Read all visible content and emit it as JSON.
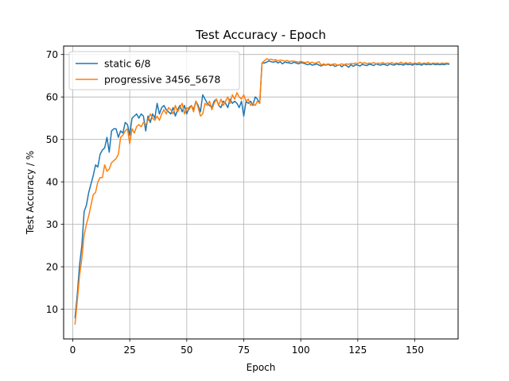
{
  "chart_data": {
    "type": "line",
    "title": "Test Accuracy - Epoch",
    "xlabel": "Epoch",
    "ylabel": "Test Accuracy / %",
    "xlim": [
      -4,
      169
    ],
    "ylim": [
      3,
      72
    ],
    "xticks": [
      0,
      25,
      50,
      75,
      100,
      125,
      150
    ],
    "yticks": [
      10,
      20,
      30,
      40,
      50,
      60,
      70
    ],
    "grid": true,
    "legend_position": "top-left",
    "series": [
      {
        "name": "static 6/8",
        "color": "#1f77b4",
        "points": [
          [
            1,
            8
          ],
          [
            2,
            13.5
          ],
          [
            3,
            20.5
          ],
          [
            4,
            25
          ],
          [
            5,
            33
          ],
          [
            6,
            34.5
          ],
          [
            7,
            37.5
          ],
          [
            8,
            39.5
          ],
          [
            9,
            41.5
          ],
          [
            10,
            44
          ],
          [
            11,
            43.5
          ],
          [
            12,
            46.5
          ],
          [
            13,
            47.5
          ],
          [
            14,
            48
          ],
          [
            15,
            50.5
          ],
          [
            16,
            47
          ],
          [
            17,
            52
          ],
          [
            18,
            52.5
          ],
          [
            19,
            52.5
          ],
          [
            20,
            50.5
          ],
          [
            21,
            52
          ],
          [
            22,
            51.5
          ],
          [
            23,
            54
          ],
          [
            24,
            53.5
          ],
          [
            25,
            51
          ],
          [
            26,
            55
          ],
          [
            27,
            55.5
          ],
          [
            28,
            56
          ],
          [
            29,
            55
          ],
          [
            30,
            56
          ],
          [
            31,
            55.5
          ],
          [
            32,
            52
          ],
          [
            33,
            55.5
          ],
          [
            34,
            54
          ],
          [
            35,
            56
          ],
          [
            36,
            55
          ],
          [
            37,
            58.5
          ],
          [
            38,
            56
          ],
          [
            39,
            57.5
          ],
          [
            40,
            58
          ],
          [
            41,
            57
          ],
          [
            42,
            56.5
          ],
          [
            43,
            56
          ],
          [
            44,
            57.5
          ],
          [
            45,
            55.5
          ],
          [
            46,
            57
          ],
          [
            47,
            58
          ],
          [
            48,
            56.5
          ],
          [
            49,
            58
          ],
          [
            50,
            56
          ],
          [
            51,
            57.5
          ],
          [
            52,
            58
          ],
          [
            53,
            57
          ],
          [
            54,
            59
          ],
          [
            55,
            58
          ],
          [
            56,
            56.5
          ],
          [
            57,
            60.5
          ],
          [
            58,
            59.5
          ],
          [
            59,
            58.5
          ],
          [
            60,
            58
          ],
          [
            61,
            57.5
          ],
          [
            62,
            59
          ],
          [
            63,
            59.5
          ],
          [
            64,
            58
          ],
          [
            65,
            57.5
          ],
          [
            66,
            59
          ],
          [
            67,
            58.5
          ],
          [
            68,
            57.5
          ],
          [
            69,
            59.5
          ],
          [
            70,
            58.5
          ],
          [
            71,
            59
          ],
          [
            72,
            58.5
          ],
          [
            73,
            57.5
          ],
          [
            74,
            59
          ],
          [
            75,
            55.5
          ],
          [
            76,
            59
          ],
          [
            77,
            58.5
          ],
          [
            78,
            59
          ],
          [
            79,
            58
          ],
          [
            80,
            60
          ],
          [
            81,
            59.5
          ],
          [
            82,
            58.5
          ],
          [
            83,
            68
          ],
          [
            84,
            68
          ],
          [
            85,
            68.2
          ],
          [
            86,
            68.5
          ],
          [
            87,
            68.3
          ],
          [
            88,
            68.2
          ],
          [
            89,
            68.4
          ],
          [
            90,
            68
          ],
          [
            91,
            68.3
          ],
          [
            92,
            67.8
          ],
          [
            93,
            68.2
          ],
          [
            94,
            68.1
          ],
          [
            95,
            68
          ],
          [
            96,
            67.9
          ],
          [
            97,
            68.2
          ],
          [
            98,
            68
          ],
          [
            99,
            67.8
          ],
          [
            100,
            68.1
          ],
          [
            101,
            68
          ],
          [
            102,
            67.8
          ],
          [
            103,
            67.6
          ],
          [
            104,
            67.8
          ],
          [
            105,
            67.5
          ],
          [
            106,
            67.6
          ],
          [
            107,
            67.8
          ],
          [
            108,
            67.5
          ],
          [
            109,
            67.3
          ],
          [
            110,
            67.6
          ],
          [
            111,
            67.5
          ],
          [
            112,
            67.7
          ],
          [
            113,
            67.4
          ],
          [
            114,
            67.6
          ],
          [
            115,
            67.2
          ],
          [
            116,
            67.4
          ],
          [
            117,
            67.6
          ],
          [
            118,
            67.1
          ],
          [
            119,
            67.6
          ],
          [
            120,
            67.4
          ],
          [
            121,
            67
          ],
          [
            122,
            67.6
          ],
          [
            123,
            67.2
          ],
          [
            124,
            67.6
          ],
          [
            125,
            67.5
          ],
          [
            126,
            67.3
          ],
          [
            127,
            67.7
          ],
          [
            128,
            67.5
          ],
          [
            129,
            67.4
          ],
          [
            130,
            67.7
          ],
          [
            131,
            67.6
          ],
          [
            132,
            67.4
          ],
          [
            133,
            67.8
          ],
          [
            134,
            67.6
          ],
          [
            135,
            67.5
          ],
          [
            136,
            67.7
          ],
          [
            137,
            67.6
          ],
          [
            138,
            67.4
          ],
          [
            139,
            67.8
          ],
          [
            140,
            67.6
          ],
          [
            141,
            67.5
          ],
          [
            142,
            67.8
          ],
          [
            143,
            67.6
          ],
          [
            144,
            67.7
          ],
          [
            145,
            67.5
          ],
          [
            146,
            67.8
          ],
          [
            147,
            67.6
          ],
          [
            148,
            67.7
          ],
          [
            149,
            67.5
          ],
          [
            150,
            67.8
          ],
          [
            151,
            67.6
          ],
          [
            152,
            67.7
          ],
          [
            153,
            67.5
          ],
          [
            154,
            67.8
          ],
          [
            155,
            67.6
          ],
          [
            156,
            67.7
          ],
          [
            157,
            67.6
          ],
          [
            158,
            67.8
          ],
          [
            159,
            67.6
          ],
          [
            160,
            67.7
          ],
          [
            161,
            67.6
          ],
          [
            162,
            67.7
          ],
          [
            163,
            67.6
          ],
          [
            164,
            67.8
          ],
          [
            165,
            67.7
          ]
        ]
      },
      {
        "name": "progressive 3456_5678",
        "color": "#ff7f0e",
        "points": [
          [
            1,
            6.5
          ],
          [
            2,
            12
          ],
          [
            3,
            18
          ],
          [
            4,
            22
          ],
          [
            5,
            27.5
          ],
          [
            6,
            30
          ],
          [
            7,
            32
          ],
          [
            8,
            34.5
          ],
          [
            9,
            37
          ],
          [
            10,
            37.5
          ],
          [
            11,
            40
          ],
          [
            12,
            41
          ],
          [
            13,
            41
          ],
          [
            14,
            44
          ],
          [
            15,
            42.5
          ],
          [
            16,
            43
          ],
          [
            17,
            44.5
          ],
          [
            18,
            45
          ],
          [
            19,
            45.5
          ],
          [
            20,
            46.5
          ],
          [
            21,
            50.5
          ],
          [
            22,
            51
          ],
          [
            23,
            52
          ],
          [
            24,
            52.5
          ],
          [
            25,
            49
          ],
          [
            26,
            52.5
          ],
          [
            27,
            51.5
          ],
          [
            28,
            53
          ],
          [
            29,
            53.5
          ],
          [
            30,
            53
          ],
          [
            31,
            54
          ],
          [
            32,
            53.5
          ],
          [
            33,
            54.5
          ],
          [
            34,
            56
          ],
          [
            35,
            55
          ],
          [
            36,
            54.5
          ],
          [
            37,
            55.5
          ],
          [
            38,
            54.5
          ],
          [
            39,
            56
          ],
          [
            40,
            57
          ],
          [
            41,
            56
          ],
          [
            42,
            57.5
          ],
          [
            43,
            57
          ],
          [
            44,
            56
          ],
          [
            45,
            58
          ],
          [
            46,
            56.5
          ],
          [
            47,
            57.5
          ],
          [
            48,
            58.5
          ],
          [
            49,
            56
          ],
          [
            50,
            57.5
          ],
          [
            51,
            57
          ],
          [
            52,
            58
          ],
          [
            53,
            56.5
          ],
          [
            54,
            59
          ],
          [
            55,
            57.5
          ],
          [
            56,
            55.5
          ],
          [
            57,
            56
          ],
          [
            58,
            58.5
          ],
          [
            59,
            58
          ],
          [
            60,
            59
          ],
          [
            61,
            57
          ],
          [
            62,
            58.5
          ],
          [
            63,
            59.5
          ],
          [
            64,
            58
          ],
          [
            65,
            59.5
          ],
          [
            66,
            58
          ],
          [
            67,
            59
          ],
          [
            68,
            60
          ],
          [
            69,
            58.5
          ],
          [
            70,
            60.5
          ],
          [
            71,
            59.5
          ],
          [
            72,
            61
          ],
          [
            73,
            60
          ],
          [
            74,
            59.5
          ],
          [
            75,
            60.5
          ],
          [
            76,
            59
          ],
          [
            77,
            59.5
          ],
          [
            78,
            58
          ],
          [
            79,
            58.5
          ],
          [
            80,
            58
          ],
          [
            81,
            59
          ],
          [
            82,
            58.5
          ],
          [
            83,
            68
          ],
          [
            84,
            68.5
          ],
          [
            85,
            69
          ],
          [
            86,
            68.8
          ],
          [
            87,
            68.9
          ],
          [
            88,
            68.7
          ],
          [
            89,
            68.8
          ],
          [
            90,
            68.5
          ],
          [
            91,
            68.7
          ],
          [
            92,
            68.6
          ],
          [
            93,
            68.4
          ],
          [
            94,
            68.6
          ],
          [
            95,
            68.3
          ],
          [
            96,
            68.5
          ],
          [
            97,
            68.4
          ],
          [
            98,
            68.3
          ],
          [
            99,
            68.2
          ],
          [
            100,
            68.4
          ],
          [
            101,
            68.2
          ],
          [
            102,
            68.1
          ],
          [
            103,
            68.3
          ],
          [
            104,
            68
          ],
          [
            105,
            68.2
          ],
          [
            106,
            67.9
          ],
          [
            107,
            68.1
          ],
          [
            108,
            68.3
          ],
          [
            109,
            67.5
          ],
          [
            110,
            67.8
          ],
          [
            111,
            67.6
          ],
          [
            112,
            67.8
          ],
          [
            113,
            67.6
          ],
          [
            114,
            67.7
          ],
          [
            115,
            67.8
          ],
          [
            116,
            67.5
          ],
          [
            117,
            67.6
          ],
          [
            118,
            67.8
          ],
          [
            119,
            67.6
          ],
          [
            120,
            67.8
          ],
          [
            121,
            67.7
          ],
          [
            122,
            67.9
          ],
          [
            123,
            67.8
          ],
          [
            124,
            68
          ],
          [
            125,
            67.8
          ],
          [
            126,
            68.2
          ],
          [
            127,
            67.9
          ],
          [
            128,
            68.1
          ],
          [
            129,
            67.8
          ],
          [
            130,
            68
          ],
          [
            131,
            67.9
          ],
          [
            132,
            68.1
          ],
          [
            133,
            67.8
          ],
          [
            134,
            68
          ],
          [
            135,
            67.9
          ],
          [
            136,
            68.1
          ],
          [
            137,
            67.8
          ],
          [
            138,
            68
          ],
          [
            139,
            67.9
          ],
          [
            140,
            68.1
          ],
          [
            141,
            67.8
          ],
          [
            142,
            68
          ],
          [
            143,
            67.9
          ],
          [
            144,
            68.2
          ],
          [
            145,
            67.8
          ],
          [
            146,
            68.1
          ],
          [
            147,
            67.9
          ],
          [
            148,
            68.1
          ],
          [
            149,
            67.8
          ],
          [
            150,
            68
          ],
          [
            151,
            67.9
          ],
          [
            152,
            68.1
          ],
          [
            153,
            67.8
          ],
          [
            154,
            68
          ],
          [
            155,
            67.9
          ],
          [
            156,
            68.1
          ],
          [
            157,
            67.8
          ],
          [
            158,
            68
          ],
          [
            159,
            67.9
          ],
          [
            160,
            68
          ],
          [
            161,
            67.8
          ],
          [
            162,
            68
          ],
          [
            163,
            67.9
          ],
          [
            164,
            68
          ],
          [
            165,
            67.9
          ]
        ]
      }
    ]
  }
}
